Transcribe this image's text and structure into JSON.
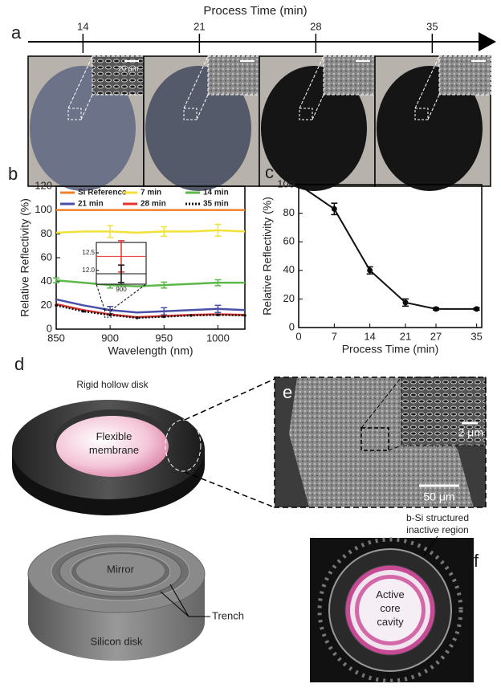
{
  "panel_a": {
    "label": "a",
    "title": "Process Time (min)",
    "ticks": [
      14,
      21,
      28,
      35
    ],
    "xlim": [
      10.7,
      38.7
    ],
    "scale_bar": "20 μm"
  },
  "chart_data": [
    {
      "type": "line",
      "label": "b",
      "xlabel": "Wavelength (nm)",
      "ylabel": "Relative Reflectivity (%)",
      "x": [
        850,
        875,
        900,
        925,
        950,
        975,
        1000,
        1025
      ],
      "xlim": [
        850,
        1025
      ],
      "xticks": [
        850,
        900,
        950,
        1000
      ],
      "ylim": [
        0,
        120
      ],
      "yticks": [
        0,
        20,
        40,
        60,
        80,
        100,
        120
      ],
      "series": [
        {
          "name": "Si Reference",
          "color": "#f07f2a",
          "values": [
            100,
            100,
            100,
            100,
            100,
            100,
            100,
            100
          ],
          "errors": [
            null,
            null,
            null,
            null,
            null,
            null,
            null,
            null
          ]
        },
        {
          "name": "7 min",
          "color": "#f2e13a",
          "values": [
            81,
            82,
            82,
            81,
            82,
            82,
            83,
            82
          ],
          "errors": [
            null,
            null,
            5,
            null,
            4,
            null,
            5,
            null
          ]
        },
        {
          "name": "14 min",
          "color": "#5bb749",
          "values": [
            41,
            39,
            37,
            36,
            37,
            38,
            39,
            39
          ],
          "errors": [
            2,
            null,
            2.5,
            null,
            2.5,
            null,
            2.5,
            null
          ]
        },
        {
          "name": "21 min",
          "color": "#4a4fa8",
          "values": [
            25,
            20,
            16,
            14,
            15,
            16,
            17,
            16
          ],
          "errors": [
            null,
            null,
            3,
            null,
            3,
            null,
            3,
            null
          ]
        },
        {
          "name": "28 min",
          "color": "#e8322e",
          "values": [
            21,
            16,
            12.4,
            10,
            11,
            12,
            12.5,
            12
          ],
          "errors": [
            null,
            null,
            null,
            null,
            null,
            null,
            null,
            null
          ]
        },
        {
          "name": "35 min",
          "color": "#111111",
          "linestyle": "dotted",
          "values": [
            20,
            15,
            11.9,
            9.5,
            10.5,
            11.5,
            12,
            11.5
          ],
          "errors": [
            null,
            null,
            null,
            null,
            null,
            null,
            null,
            null
          ]
        }
      ],
      "inset": {
        "xlim": [
          880,
          920
        ],
        "xticks": [
          900
        ],
        "ylim": [
          11.6,
          12.8
        ],
        "yticks": [
          {
            "value": 12,
            "label": "12.0"
          },
          12.5
        ],
        "series": [
          {
            "color": "#e8322e",
            "x": [
              900
            ],
            "values": [
              12.4
            ],
            "errors": [
              0.45
            ]
          },
          {
            "color": "#111111",
            "x": [
              900
            ],
            "values": [
              11.9
            ],
            "errors": [
              0.25
            ]
          }
        ]
      }
    },
    {
      "type": "line",
      "label": "c",
      "xlabel": "Process Time (min)",
      "ylabel": "Relative Reflectivity (%)",
      "x": [
        0,
        7,
        14,
        21,
        27,
        35
      ],
      "xlim": [
        0,
        36
      ],
      "xticks": [
        0,
        7,
        14,
        21,
        27,
        35
      ],
      "ylim": [
        0,
        100
      ],
      "yticks": [
        0,
        20,
        40,
        60,
        80,
        100
      ],
      "series": [
        {
          "color": "#111111",
          "values": [
            100,
            83,
            40,
            17.5,
            13,
            13
          ],
          "errors": [
            0,
            4,
            2.5,
            2.5,
            0.8,
            0.8
          ]
        }
      ]
    }
  ],
  "panel_d": {
    "label": "d",
    "top": "Rigid hollow disk",
    "membrane": [
      "Flexible",
      "membrane"
    ],
    "mirror": "Mirror",
    "trench": "Trench",
    "base": "Silicon disk"
  },
  "panel_e": {
    "label": "e",
    "inset_scale": "2 μm",
    "scale": "50 μm"
  },
  "panel_f": {
    "label": "f",
    "region": [
      "b-Si structured",
      "inactive region"
    ],
    "core": [
      "Active",
      "core",
      "cavity"
    ]
  }
}
